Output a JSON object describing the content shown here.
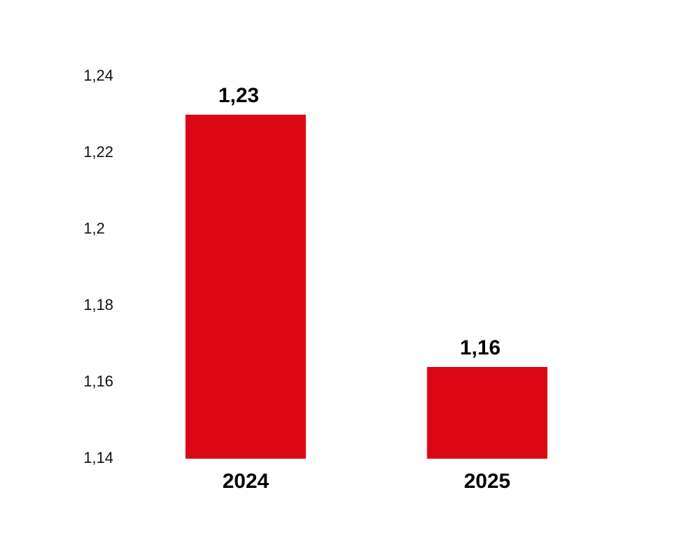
{
  "chart_data": {
    "type": "bar",
    "categories": [
      "2024",
      "2025"
    ],
    "values": [
      1.23,
      1.164
    ],
    "data_labels": [
      "1,23",
      "1,16"
    ],
    "yticks": [
      1.14,
      1.16,
      1.18,
      1.2,
      1.22,
      1.24
    ],
    "ytick_labels": [
      "1,14",
      "1,16",
      "1,18",
      "1,2",
      "1,22",
      "1,24"
    ],
    "ylim": [
      1.14,
      1.24
    ],
    "bar_color": "#DC0714",
    "grid": false,
    "legend": "none"
  }
}
